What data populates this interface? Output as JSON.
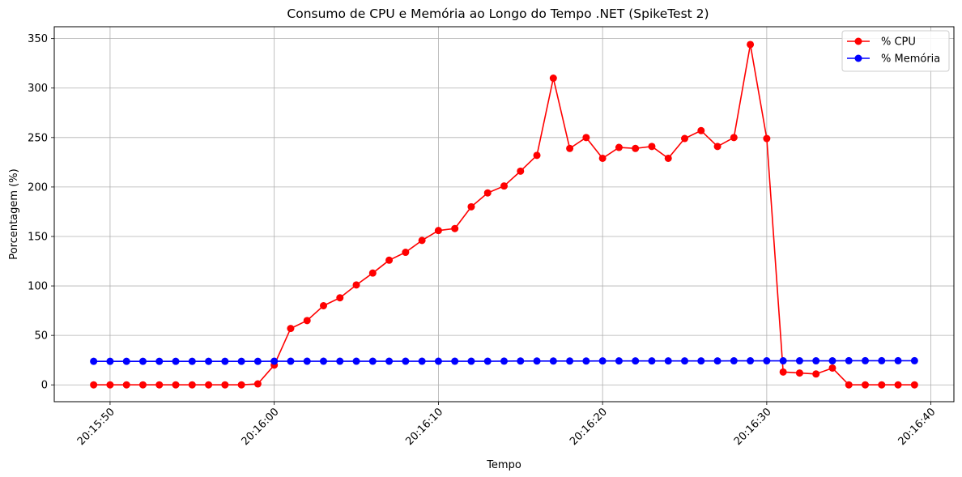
{
  "chart_data": {
    "type": "line",
    "title": "Consumo de CPU e Memória ao Longo do Tempo .NET (SpikeTest 2)",
    "xlabel": "Tempo",
    "ylabel": "Porcentagem (%)",
    "x_ticks": [
      "20:15:50",
      "20:16:00",
      "20:16:10",
      "20:16:20",
      "20:16:30",
      "20:16:40"
    ],
    "y_ticks": [
      0,
      50,
      100,
      150,
      200,
      250,
      300,
      350
    ],
    "ylim": [
      -17,
      362
    ],
    "xlim": [
      "20:15:46.6",
      "20:16:41.4"
    ],
    "grid": true,
    "legend_position": "top-right",
    "x": [
      "20:15:49",
      "20:15:50",
      "20:15:51",
      "20:15:52",
      "20:15:53",
      "20:15:54",
      "20:15:55",
      "20:15:56",
      "20:15:57",
      "20:15:58",
      "20:15:59",
      "20:16:00",
      "20:16:01",
      "20:16:02",
      "20:16:03",
      "20:16:04",
      "20:16:05",
      "20:16:06",
      "20:16:07",
      "20:16:08",
      "20:16:09",
      "20:16:10",
      "20:16:11",
      "20:16:12",
      "20:16:13",
      "20:16:14",
      "20:16:15",
      "20:16:16",
      "20:16:17",
      "20:16:18",
      "20:16:19",
      "20:16:20",
      "20:16:21",
      "20:16:22",
      "20:16:23",
      "20:16:24",
      "20:16:25",
      "20:16:26",
      "20:16:27",
      "20:16:28",
      "20:16:29",
      "20:16:30",
      "20:16:31",
      "20:16:32",
      "20:16:33",
      "20:16:34",
      "20:16:35",
      "20:16:36",
      "20:16:37",
      "20:16:38",
      "20:16:39"
    ],
    "series": [
      {
        "name": "% CPU",
        "color": "#ff0000",
        "values": [
          0,
          0,
          0,
          0,
          0,
          0,
          0,
          0,
          0,
          0,
          1,
          20,
          57,
          65,
          80,
          88,
          101,
          113,
          126,
          134,
          146,
          156,
          158,
          180,
          194,
          201,
          216,
          232,
          310,
          239,
          250,
          229,
          240,
          239,
          241,
          229,
          249,
          257,
          241,
          250,
          344,
          249,
          13,
          12,
          11,
          17,
          0,
          0,
          0,
          0,
          0
        ]
      },
      {
        "name": "% Memória",
        "color": "#0000ff",
        "values": [
          23.8,
          23.8,
          23.8,
          23.8,
          23.8,
          23.8,
          23.8,
          23.8,
          23.8,
          23.8,
          23.8,
          23.9,
          23.9,
          23.9,
          23.9,
          23.9,
          23.9,
          23.9,
          23.9,
          23.9,
          23.9,
          23.9,
          23.9,
          23.9,
          23.9,
          24.0,
          24.1,
          24.1,
          24.1,
          24.1,
          24.1,
          24.2,
          24.2,
          24.2,
          24.2,
          24.2,
          24.2,
          24.2,
          24.2,
          24.3,
          24.3,
          24.3,
          24.3,
          24.3,
          24.3,
          24.3,
          24.4,
          24.4,
          24.4,
          24.4,
          24.4
        ]
      }
    ]
  }
}
